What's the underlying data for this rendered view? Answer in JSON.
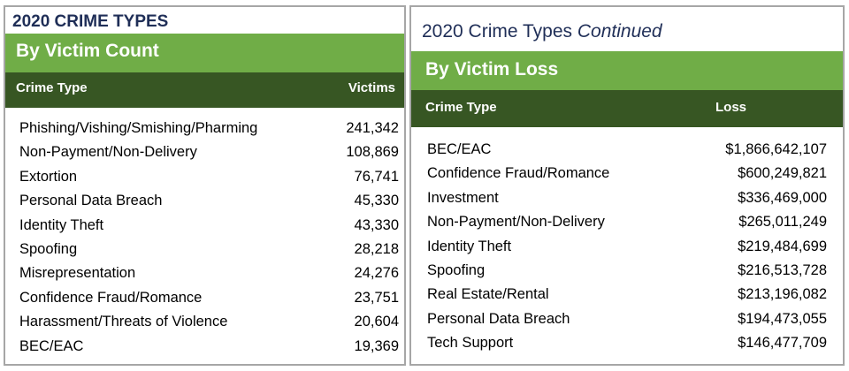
{
  "left": {
    "title": "2020 CRIME TYPES",
    "section": "By Victim Count",
    "col_type": "Crime Type",
    "col_value": "Victims",
    "rows": [
      {
        "type": "Phishing/Vishing/Smishing/Pharming",
        "value": "241,342"
      },
      {
        "type": "Non-Payment/Non-Delivery",
        "value": "108,869"
      },
      {
        "type": "Extortion",
        "value": "76,741"
      },
      {
        "type": "Personal Data Breach",
        "value": "45,330"
      },
      {
        "type": "Identity Theft",
        "value": "43,330"
      },
      {
        "type": "Spoofing",
        "value": "28,218"
      },
      {
        "type": "Misrepresentation",
        "value": "24,276"
      },
      {
        "type": "Confidence Fraud/Romance",
        "value": "23,751"
      },
      {
        "type": "Harassment/Threats of Violence",
        "value": "20,604"
      },
      {
        "type": "BEC/EAC",
        "value": "19,369"
      }
    ]
  },
  "right": {
    "title": "2020 Crime Types",
    "title_emph": "Continued",
    "section": "By Victim Loss",
    "col_type": "Crime Type",
    "col_value": "Loss",
    "rows": [
      {
        "type": "BEC/EAC",
        "value": "$1,866,642,107"
      },
      {
        "type": "Confidence Fraud/Romance",
        "value": "$600,249,821"
      },
      {
        "type": "Investment",
        "value": "$336,469,000"
      },
      {
        "type": "Non-Payment/Non-Delivery",
        "value": "$265,011,249"
      },
      {
        "type": "Identity Theft",
        "value": "$219,484,699"
      },
      {
        "type": "Spoofing",
        "value": "$216,513,728"
      },
      {
        "type": "Real Estate/Rental",
        "value": "$213,196,082"
      },
      {
        "type": "Personal Data Breach",
        "value": "$194,473,055"
      },
      {
        "type": "Tech Support",
        "value": "$146,477,709"
      }
    ]
  },
  "colors": {
    "green": "#70ad47",
    "dark_green": "#375623",
    "navy": "#1f2e57",
    "border": "#a6a6a6"
  }
}
